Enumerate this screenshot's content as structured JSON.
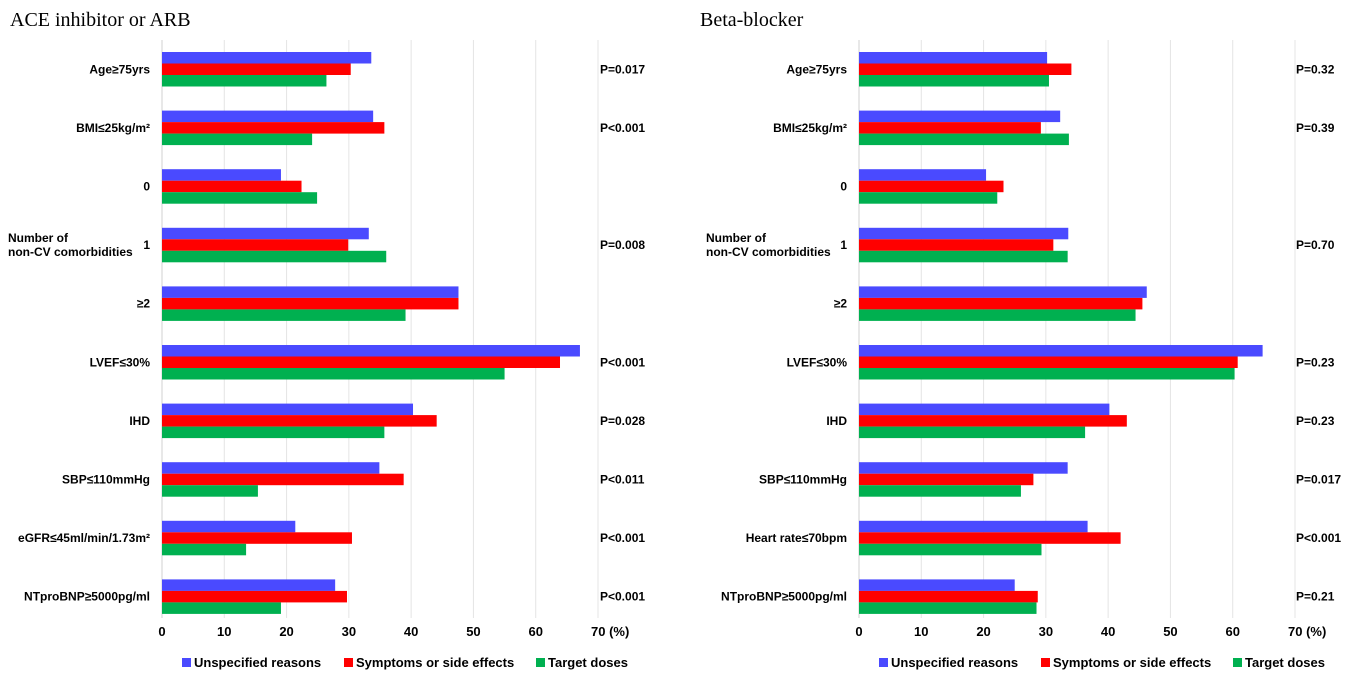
{
  "colors": {
    "unspecified": "#4a4aff",
    "symptoms": "#ff0000",
    "target": "#00b050",
    "grid": "#e4e4e4"
  },
  "legend": {
    "unspecified": "Unspecified reasons",
    "symptoms": "Symptoms or side effects",
    "target": "Target doses"
  },
  "chart_data": [
    {
      "type": "bar",
      "orientation": "horizontal",
      "title": "ACE inhibitor or ARB",
      "xlim": [
        0,
        70
      ],
      "xticks": [
        0,
        10,
        20,
        30,
        40,
        50,
        60
      ],
      "xtick_last_label": "70 (%)",
      "grid": true,
      "legend_position": "bottom",
      "group_label": "Number of non-CV comorbidities",
      "group_label_lines": [
        "Number of",
        "non-CV comorbidities"
      ],
      "categories": [
        "Age≥75yrs",
        "BMI≤25kg/m²",
        "0",
        "1",
        "≥2",
        "LVEF≤30%",
        "IHD",
        "SBP≤110mmHg",
        "eGFR≤45ml/min/1.73m²",
        "NTproBNP≥5000pg/ml"
      ],
      "series": [
        {
          "name": "Unspecified reasons",
          "values": [
            33.6,
            33.9,
            19.1,
            33.2,
            47.6,
            67.1,
            40.3,
            34.9,
            21.4,
            27.8
          ]
        },
        {
          "name": "Symptoms or side effects",
          "values": [
            30.3,
            35.7,
            22.4,
            29.9,
            47.6,
            63.9,
            44.1,
            38.8,
            30.5,
            29.7
          ]
        },
        {
          "name": "Target doses",
          "values": [
            26.4,
            24.1,
            24.9,
            36.0,
            39.1,
            55.0,
            35.7,
            15.4,
            13.5,
            19.1
          ]
        }
      ],
      "p_values": [
        "P=0.017",
        "P<0.001",
        "",
        "P=0.008",
        "",
        "P<0.001",
        "P=0.028",
        "P<0.011",
        "P<0.001",
        "P<0.001"
      ]
    },
    {
      "type": "bar",
      "orientation": "horizontal",
      "title": "Beta-blocker",
      "xlim": [
        0,
        70
      ],
      "xticks": [
        0,
        10,
        20,
        30,
        40,
        50,
        60
      ],
      "xtick_last_label": "70 (%)",
      "grid": true,
      "legend_position": "bottom",
      "group_label": "Number of non-CV comorbidities",
      "group_label_lines": [
        "Number of",
        "non-CV comorbidities"
      ],
      "categories": [
        "Age≥75yrs",
        "BMI≤25kg/m²",
        "0",
        "1",
        "≥2",
        "LVEF≤30%",
        "IHD",
        "SBP≤110mmHg",
        "Heart rate≤70bpm",
        "NTproBNP≥5000pg/ml"
      ],
      "series": [
        {
          "name": "Unspecified reasons",
          "values": [
            30.2,
            32.3,
            20.4,
            33.6,
            46.2,
            64.8,
            40.2,
            33.5,
            36.7,
            25.0
          ]
        },
        {
          "name": "Symptoms or side effects",
          "values": [
            34.1,
            29.2,
            23.2,
            31.2,
            45.5,
            60.8,
            43.0,
            28.0,
            42.0,
            28.7
          ]
        },
        {
          "name": "Target doses",
          "values": [
            30.5,
            33.7,
            22.2,
            33.5,
            44.4,
            60.3,
            36.3,
            26.0,
            29.3,
            28.5
          ]
        }
      ],
      "p_values": [
        "P=0.32",
        "P=0.39",
        "",
        "P=0.70",
        "",
        "P=0.23",
        "P=0.23",
        "P=0.017",
        "P<0.001",
        "P=0.21"
      ]
    }
  ]
}
